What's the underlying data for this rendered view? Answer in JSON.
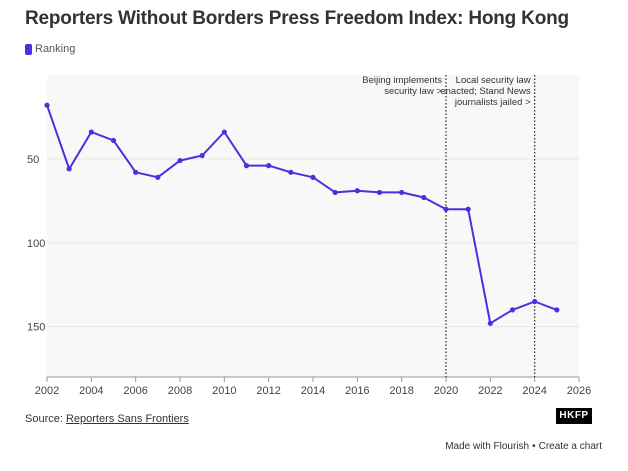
{
  "chart_data": {
    "type": "line",
    "title": "Reporters Without Borders Press Freedom Index: Hong Kong",
    "legend": "top-left",
    "series": [
      {
        "name": "Ranking",
        "color": "#4c2fdd",
        "x": [
          2002,
          2003,
          2004,
          2005,
          2006,
          2007,
          2008,
          2009,
          2010,
          2011,
          2012,
          2013,
          2014,
          2015,
          2016,
          2017,
          2018,
          2019,
          2020,
          2021,
          2022,
          2023,
          2024,
          2025
        ],
        "values": [
          18,
          56,
          34,
          39,
          58,
          61,
          51,
          48,
          34,
          54,
          54,
          58,
          61,
          70,
          69,
          70,
          70,
          73,
          80,
          80,
          148,
          140,
          135,
          140
        ]
      }
    ],
    "xlim": [
      2002,
      2026
    ],
    "xticks": [
      "2002",
      "2004",
      "2006",
      "2008",
      "2010",
      "2012",
      "2014",
      "2016",
      "2018",
      "2020",
      "2022",
      "2024",
      "2026"
    ],
    "ylim": [
      180,
      0
    ],
    "yticks": [
      "50",
      "100",
      "150"
    ],
    "y_reversed": true,
    "xlabel": "",
    "ylabel": "",
    "annotations": [
      {
        "x": 2020,
        "lines": [
          "Beijing implements",
          "security law >"
        ]
      },
      {
        "x": 2024,
        "lines": [
          "Local security law",
          "enacted; Stand News",
          "journalists jailed >"
        ]
      }
    ]
  },
  "footer": {
    "source_prefix": "Source: ",
    "source_link": "Reporters Sans Frontiers",
    "brand": "HKFP",
    "made_with": "Made with Flourish",
    "separator": "•",
    "create": "Create a chart"
  }
}
